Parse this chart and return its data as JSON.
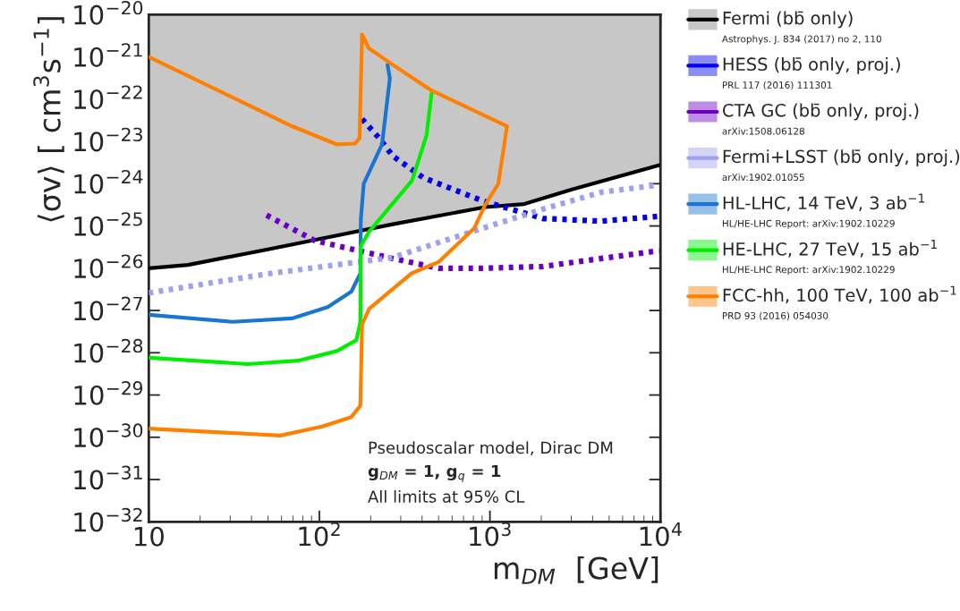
{
  "chart_data": {
    "type": "line",
    "xlabel": "m$_{DM}$  [GeV]",
    "ylabel": "⟨σv⟩ [ cm$^{3}$s$^{−1}$]",
    "log": "xy",
    "xlim": [
      10,
      10000
    ],
    "ylim": [
      1e-32,
      1e-20
    ],
    "xticks": [
      {
        "value": 10,
        "label": "10"
      },
      {
        "value": 100,
        "label": "10$^{2}$"
      },
      {
        "value": 1000,
        "label": "10$^{3}$"
      },
      {
        "value": 10000,
        "label": "10$^{4}$"
      }
    ],
    "yticks": [
      {
        "value": 1e-32,
        "label": "10$^{−32}$"
      },
      {
        "value": 1e-31,
        "label": "10$^{−31}$"
      },
      {
        "value": 1e-30,
        "label": "10$^{−30}$"
      },
      {
        "value": 1e-29,
        "label": "10$^{−29}$"
      },
      {
        "value": 1e-28,
        "label": "10$^{−28}$"
      },
      {
        "value": 1e-27,
        "label": "10$^{−27}$"
      },
      {
        "value": 1e-26,
        "label": "10$^{−26}$"
      },
      {
        "value": 1e-25,
        "label": "10$^{−25}$"
      },
      {
        "value": 1e-24,
        "label": "10$^{−24}$"
      },
      {
        "value": 1e-23,
        "label": "10$^{−23}$"
      },
      {
        "value": 1e-22,
        "label": "10$^{−22}$"
      },
      {
        "value": 1e-21,
        "label": "10$^{−21}$"
      },
      {
        "value": 1e-20,
        "label": "10$^{−20}$"
      }
    ],
    "grid": false,
    "legend": "right",
    "series": [
      {
        "name": "Fermi (bb̄ only)",
        "color": "#000000",
        "line_style": "solid",
        "x": [
          10,
          17,
          50,
          270,
          940,
          1590,
          3000,
          10000
        ],
        "values": [
          1e-26,
          1.2e-26,
          2.8e-26,
          1.1e-25,
          2.8e-25,
          3.3e-25,
          7.2e-25,
          2.8e-24
        ]
      },
      {
        "name": "HESS (bb̄ only, proj.)",
        "color": "#0000ee",
        "line_style": "dotted",
        "x": [
          178,
          224,
          270,
          405,
          910,
          2050,
          4500,
          9800
        ],
        "values": [
          3.4e-23,
          1.2e-23,
          4.5e-24,
          1.4e-24,
          3.9e-25,
          1.5e-25,
          1.3e-25,
          1.7e-25
        ]
      },
      {
        "name": "CTA GC (bb̄ only, proj.)",
        "color": "#6a00c8",
        "line_style": "dotted",
        "x": [
          49,
          94,
          170,
          270,
          500,
          910,
          2050,
          4500,
          9800
        ],
        "values": [
          1.8e-25,
          4.5e-26,
          2.6e-26,
          1.7e-26,
          1e-26,
          1e-26,
          1.1e-26,
          1.7e-26,
          2.6e-26
        ]
      },
      {
        "name": "Fermi+LSST (bb̄ only, proj.)",
        "color": "#a0a0f0",
        "line_style": "dotted",
        "x": [
          10,
          50,
          270,
          910,
          2050,
          4500,
          9800
        ],
        "values": [
          2.6e-27,
          7.4e-27,
          1.8e-26,
          8.9e-26,
          2.5e-25,
          6.3e-25,
          9.3e-25
        ]
      },
      {
        "name": "HL-LHC, 14 TeV, 3 ab$^{−1}$",
        "color": "#1a75d1",
        "line_style": "solid",
        "x": [
          10,
          31,
          69,
          112,
          154,
          174,
          175,
          182,
          233,
          259,
          251
        ],
        "values": [
          7.9e-28,
          5.4e-28,
          6.5e-28,
          1.2e-27,
          2.8e-27,
          7.6e-27,
          1.4e-25,
          1e-24,
          8.5e-24,
          3.1e-22,
          6.5e-22
        ]
      },
      {
        "name": "HE-LHC, 27 TeV, 15 ab$^{−1}$",
        "color": "#00ee00",
        "line_style": "solid",
        "x": [
          10,
          38,
          75,
          127,
          165,
          174,
          175,
          195,
          350,
          425,
          455
        ],
        "values": [
          7.6e-29,
          5.4e-29,
          6.5e-29,
          1.1e-28,
          2e-28,
          5.4e-28,
          3.3e-26,
          7.2e-26,
          1.2e-24,
          1.4e-23,
          1.4e-22
        ]
      },
      {
        "name": "FCC-hh, 100 TeV, 100 ab$^{−1}$",
        "color": "#ff8000",
        "line_style": "solid",
        "x": [
          10,
          31,
          69,
          127,
          162,
          172,
          178,
          195,
          261,
          455,
          1260,
          1120,
          940,
          810,
          500,
          348,
          196,
          178,
          174,
          154,
          104,
          59,
          10
        ],
        "values": [
          1e-21,
          1.1e-22,
          2.3e-23,
          8.5e-24,
          8.9e-24,
          1.2e-23,
          3.4e-21,
          1.6e-21,
          7.1e-22,
          1.6e-22,
          2.3e-23,
          1e-24,
          3.2e-25,
          8.9e-26,
          1.4e-26,
          7.6e-27,
          1.1e-27,
          4.7e-28,
          5.6e-30,
          3e-30,
          1.8e-30,
          1.1e-30,
          1.6e-30
        ]
      }
    ],
    "annotations": [
      "Astrophys. J. 834 (2017) no 2, 110",
      "PRL 117 (2016) 111301",
      "arXiv:1508.06128",
      "arXiv:1902.01055",
      "HL/HE-LHC Report: arXiv:1902.10229",
      "HL/HE-LHC Report: arXiv:1902.10229",
      "PRD 93 (2016) 054030",
      "Pseudoscalar model, Dirac DM",
      "g$_{DM}$ = 1, g$_{q}$ = 1",
      "All limits at 95% CL"
    ]
  }
}
